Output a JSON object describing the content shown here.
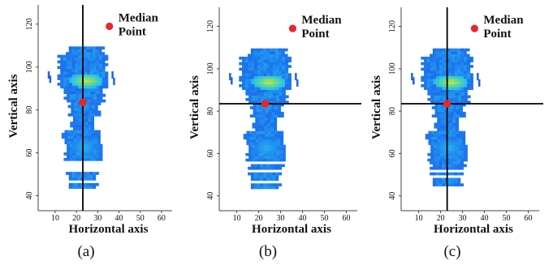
{
  "chart_data": [
    {
      "type": "heatmap",
      "panel": "(a)",
      "xlabel": "Horizontal axis",
      "ylabel": "Vertical axis",
      "xticks": [
        10,
        20,
        30,
        40,
        50,
        60
      ],
      "yticks": [
        40,
        60,
        80,
        100,
        120
      ],
      "xlim": [
        2,
        65
      ],
      "ylim": [
        33,
        129
      ],
      "median_point": {
        "x": 23,
        "y": 83.5
      },
      "legend_point": {
        "x": 35.5,
        "y": 119
      },
      "legend_label": [
        "Median",
        "Point"
      ],
      "crosshair": {
        "vertical_x": 23
      },
      "caption": "(a)"
    },
    {
      "type": "heatmap",
      "panel": "(b)",
      "xlabel": "Horizontal axis",
      "ylabel": "Vertical axis",
      "xticks": [
        10,
        20,
        30,
        40,
        50,
        60
      ],
      "yticks": [
        40,
        60,
        80,
        100,
        120
      ],
      "xlim": [
        2,
        65
      ],
      "ylim": [
        33,
        129
      ],
      "median_point": {
        "x": 23,
        "y": 83.5
      },
      "legend_point": {
        "x": 35.5,
        "y": 119
      },
      "legend_label": [
        "Median",
        "Point"
      ],
      "crosshair": {
        "horizontal_y": 83.5
      },
      "caption": "(b)"
    },
    {
      "type": "heatmap",
      "panel": "(c)",
      "xlabel": "Horizontal axis",
      "ylabel": "Vertical axis",
      "xticks": [
        10,
        20,
        30,
        40,
        50,
        60
      ],
      "yticks": [
        40,
        60,
        80,
        100,
        120
      ],
      "xlim": [
        2,
        65
      ],
      "ylim": [
        33,
        129
      ],
      "median_point": {
        "x": 23,
        "y": 83.5
      },
      "legend_point": {
        "x": 35.5,
        "y": 119
      },
      "legend_label": [
        "Median",
        "Point"
      ],
      "crosshair": {
        "vertical_x": 23,
        "horizontal_y": 83.5
      },
      "caption": "(c)"
    }
  ],
  "colors": {
    "median_point": "#e8262c",
    "crosshair": "#000000",
    "heat_low": "#1f3fd6",
    "heat_mid": "#28b8e8",
    "heat_high": "#e6e62a"
  }
}
